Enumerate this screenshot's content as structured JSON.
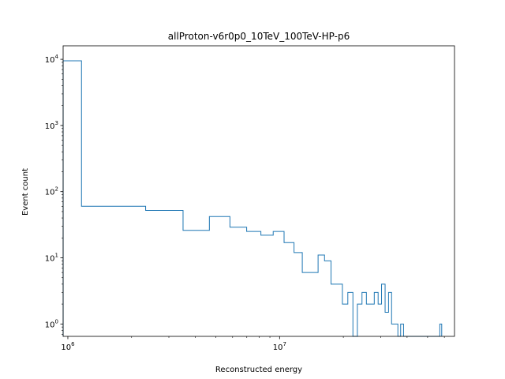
{
  "chart_data": {
    "type": "histogram",
    "title": "allProton-v6r0p0_10TeV_100TeV-HP-p6",
    "xlabel": "Reconstructed energy",
    "ylabel": "Event count",
    "xscale": "log",
    "yscale": "log",
    "xlim": [
      950000,
      67000000
    ],
    "ylim": [
      0.65,
      16000
    ],
    "xticks": [
      {
        "value": 1000000,
        "base": "10",
        "exp": "6"
      },
      {
        "value": 10000000,
        "base": "10",
        "exp": "7"
      }
    ],
    "yticks": [
      {
        "value": 1,
        "base": "10",
        "exp": "0"
      },
      {
        "value": 10,
        "base": "10",
        "exp": "1"
      },
      {
        "value": 100,
        "base": "10",
        "exp": "2"
      },
      {
        "value": 1000,
        "base": "10",
        "exp": "3"
      },
      {
        "value": 10000,
        "base": "10",
        "exp": "4"
      }
    ],
    "grid": false,
    "color": "#1f77b4",
    "bin_edges": [
      950000,
      1160000,
      2330000,
      3500000,
      4660000,
      5830000,
      6990000,
      8160000,
      9330000,
      10500000,
      11700000,
      12800000,
      15200000,
      16300000,
      17500000,
      18700000,
      19800000,
      21000000,
      22200000,
      23300000,
      24500000,
      25700000,
      26800000,
      28000000,
      29200000,
      30300000,
      31500000,
      32700000,
      33800000,
      35000000,
      36200000,
      37300000,
      38500000,
      39700000,
      40800000,
      42000000,
      43100000,
      44300000,
      45500000,
      46600000,
      47800000,
      49000000,
      50100000,
      51300000,
      52400000,
      53600000,
      54800000,
      55900000,
      57100000,
      58300000
    ],
    "counts": [
      9500,
      60,
      52,
      26,
      42,
      29,
      25,
      22,
      25,
      17,
      12,
      6,
      11,
      9,
      4,
      4,
      2,
      3,
      0,
      2,
      3,
      2,
      2,
      3,
      2,
      4,
      1.5,
      3,
      1,
      1,
      0,
      1,
      0,
      0,
      0,
      0,
      0,
      0,
      0,
      0,
      0,
      0,
      0,
      0,
      0,
      0,
      0,
      0,
      1
    ]
  }
}
